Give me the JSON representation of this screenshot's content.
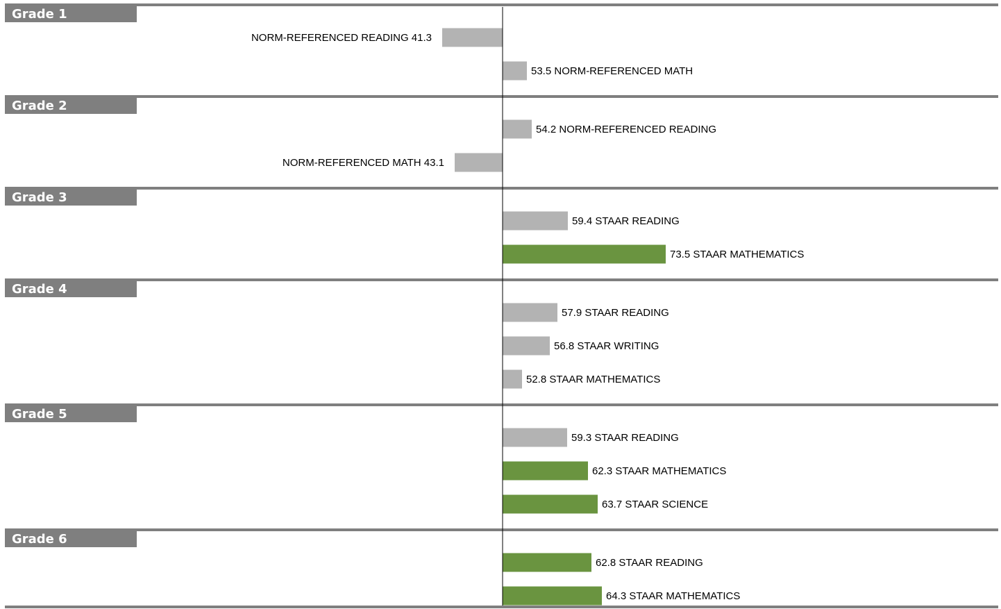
{
  "colors": {
    "below_or_neutral": "#b3b3b3",
    "highlight": "#6a9440",
    "section_rule": "#7f7f7f",
    "grade_tab": "#7f7f7f",
    "center_axis": "#000000"
  },
  "chart_data": {
    "type": "bar",
    "orientation": "horizontal",
    "baseline": 50,
    "grid": false,
    "groups": [
      {
        "name": "Grade 1",
        "bars": [
          {
            "label": "NORM-REFERENCED READING",
            "value": 41.3,
            "highlight": false
          },
          {
            "label": "NORM-REFERENCED MATH",
            "value": 53.5,
            "highlight": false
          }
        ]
      },
      {
        "name": "Grade 2",
        "bars": [
          {
            "label": "NORM-REFERENCED READING",
            "value": 54.2,
            "highlight": false
          },
          {
            "label": "NORM-REFERENCED MATH",
            "value": 43.1,
            "highlight": false
          }
        ]
      },
      {
        "name": "Grade 3",
        "bars": [
          {
            "label": "STAAR READING",
            "value": 59.4,
            "highlight": false
          },
          {
            "label": "STAAR MATHEMATICS",
            "value": 73.5,
            "highlight": true
          }
        ]
      },
      {
        "name": "Grade 4",
        "bars": [
          {
            "label": "STAAR READING",
            "value": 57.9,
            "highlight": false
          },
          {
            "label": "STAAR WRITING",
            "value": 56.8,
            "highlight": false
          },
          {
            "label": "STAAR MATHEMATICS",
            "value": 52.8,
            "highlight": false
          }
        ]
      },
      {
        "name": "Grade 5",
        "bars": [
          {
            "label": "STAAR READING",
            "value": 59.3,
            "highlight": false
          },
          {
            "label": "STAAR MATHEMATICS",
            "value": 62.3,
            "highlight": true
          },
          {
            "label": "STAAR SCIENCE",
            "value": 63.7,
            "highlight": true
          }
        ]
      },
      {
        "name": "Grade 6",
        "bars": [
          {
            "label": "STAAR READING",
            "value": 62.8,
            "highlight": true
          },
          {
            "label": "STAAR MATHEMATICS",
            "value": 64.3,
            "highlight": true
          }
        ]
      }
    ]
  }
}
